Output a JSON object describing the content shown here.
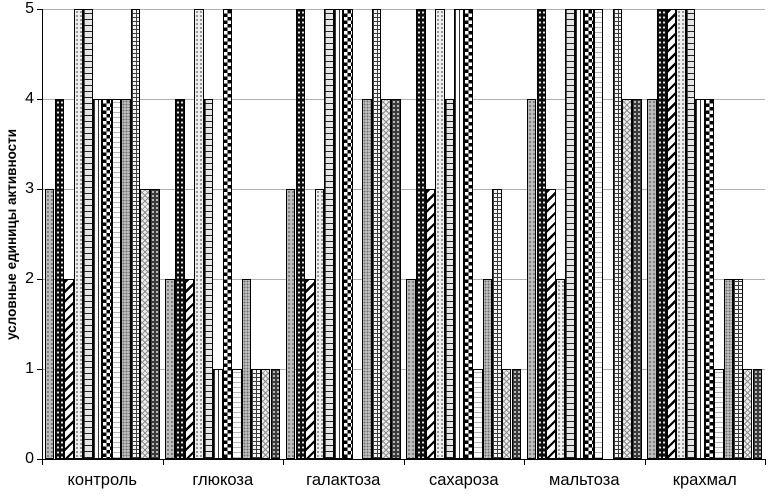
{
  "chart_data": {
    "type": "bar",
    "title": "",
    "ylabel": "условные единицы активности",
    "xlabel": "",
    "ylim": [
      0,
      5
    ],
    "yticks": [
      "0",
      "1",
      "2",
      "3",
      "4",
      "5"
    ],
    "grid": true,
    "legend": false,
    "categories": [
      "контроль",
      "глюкоза",
      "галактоза",
      "сахароза",
      "мальтоза",
      "крахмал"
    ],
    "series": [
      {
        "pattern": "light-gray-dotted",
        "values": [
          3,
          2,
          3,
          2,
          4,
          4
        ]
      },
      {
        "pattern": "black-dotted",
        "values": [
          4,
          4,
          5,
          5,
          5,
          5
        ]
      },
      {
        "pattern": "diagonal-stripes-bold",
        "values": [
          2,
          2,
          2,
          3,
          3,
          5
        ]
      },
      {
        "pattern": "light-fine-dots",
        "values": [
          5,
          5,
          3,
          5,
          2,
          5
        ]
      },
      {
        "pattern": "brick",
        "values": [
          5,
          4,
          5,
          4,
          5,
          5
        ]
      },
      {
        "pattern": "vertical-dashes",
        "values": [
          4,
          1,
          5,
          5,
          5,
          4
        ]
      },
      {
        "pattern": "checkerboard",
        "values": [
          4,
          5,
          5,
          5,
          5,
          4
        ]
      },
      {
        "pattern": "white-horizontal-dashes",
        "values": [
          4,
          1,
          0,
          1,
          5,
          1
        ]
      },
      {
        "pattern": "gray-dense-dots",
        "values": [
          4,
          2,
          4,
          2,
          0,
          2
        ]
      },
      {
        "pattern": "grid",
        "values": [
          5,
          1,
          5,
          3,
          5,
          2
        ]
      },
      {
        "pattern": "diagonal-crosshatch-light",
        "values": [
          3,
          1,
          4,
          1,
          4,
          1
        ]
      },
      {
        "pattern": "dark-gray-dots",
        "values": [
          3,
          1,
          4,
          1,
          4,
          1
        ]
      }
    ]
  },
  "layout_note": ""
}
